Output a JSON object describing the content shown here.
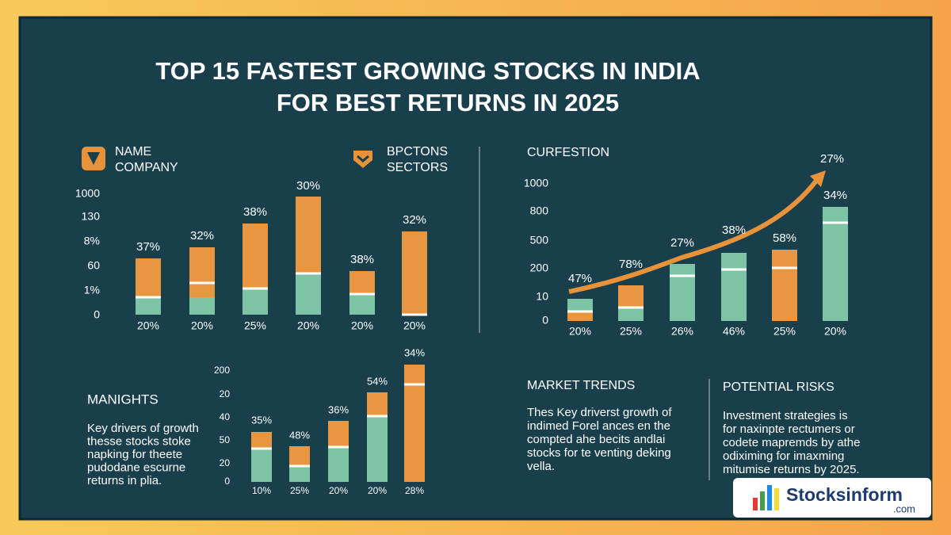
{
  "title": [
    "TOP 15 FASTEST GROWING STOCKS IN INDIA",
    "FOR BEST RETURNS IN 2025"
  ],
  "panel1": {
    "legend": [
      [
        "NAME",
        "COMPANY"
      ],
      [
        "BPCTONS",
        "SECTORS"
      ]
    ],
    "y_labels": [
      "1000",
      "130",
      "8%",
      "60",
      "1%",
      "0"
    ],
    "bar_labels": [
      "37%",
      "32%",
      "38%",
      "30%",
      "38%",
      "32%"
    ],
    "x_labels": [
      "20%",
      "20%",
      "25%",
      "20%",
      "20%",
      "20%"
    ]
  },
  "panel2": {
    "title": "CURFESTION",
    "y_labels": [
      "1000",
      "800",
      "500",
      "200",
      "10",
      "0"
    ],
    "bar_labels": [
      "47%",
      "78%",
      "27%",
      "38%",
      "58%",
      "34%"
    ],
    "arrow_label": "27%",
    "x_labels": [
      "20%",
      "25%",
      "26%",
      "46%",
      "25%",
      "20%"
    ]
  },
  "panel3": {
    "title": "MANIGHTS",
    "text": [
      "Key drivers of growth",
      "thesse stocks stoke",
      "napking for theete",
      "pudodane escurne",
      "returns in plia."
    ],
    "y_labels": [
      "200",
      "20",
      "40",
      "50",
      "20",
      "0"
    ],
    "bar_labels": [
      "35%",
      "48%",
      "36%",
      "54%",
      "34%"
    ],
    "x_labels": [
      "10%",
      "25%",
      "20%",
      "20%",
      "28%"
    ]
  },
  "market_trends": {
    "title": "MARKET TRENDS",
    "text": [
      "Thes Key driverst growth of",
      "indimed Forel ances en the",
      "compted ahe becits andlai",
      "stocks for te venting deking",
      "vella."
    ]
  },
  "potential_risks": {
    "title": "POTENTIAL RISKS",
    "text": [
      "Investment strategies is",
      "for naxinpte rectumers or",
      "codete mapremds by athe",
      "odiximing for imaxming",
      "mitumise returns by 2025."
    ]
  },
  "logo": {
    "name": "Stocksinform",
    "suffix": ".com"
  }
}
